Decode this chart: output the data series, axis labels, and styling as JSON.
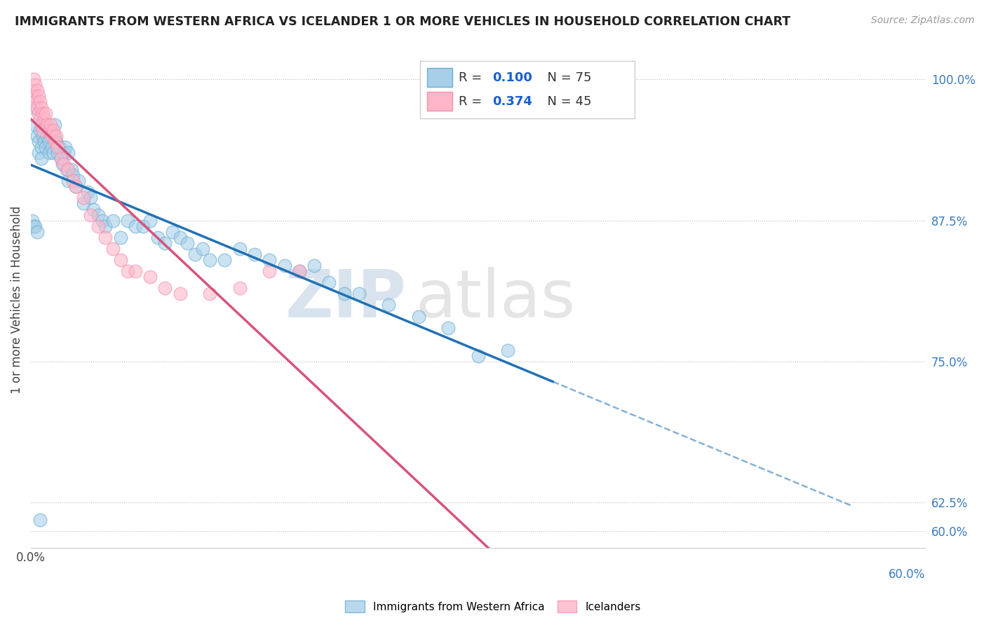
{
  "title": "IMMIGRANTS FROM WESTERN AFRICA VS ICELANDER 1 OR MORE VEHICLES IN HOUSEHOLD CORRELATION CHART",
  "source": "Source: ZipAtlas.com",
  "ylabel": "1 or more Vehicles in Household",
  "legend_label1": "Immigrants from Western Africa",
  "legend_label2": "Icelanders",
  "legend_r1_pre": "R = ",
  "legend_r1_val": "0.100",
  "legend_n1": "N = 75",
  "legend_r2_pre": "R = ",
  "legend_r2_val": "0.374",
  "legend_n2": "N = 45",
  "blue_color": "#a8cfe8",
  "blue_edge_color": "#6baed6",
  "pink_color": "#ffb6c8",
  "pink_edge_color": "#f48fb1",
  "blue_line_color": "#2171b5",
  "pink_line_color": "#d6547a",
  "rval_color": "#1a5fcc",
  "watermark_zip": "ZIP",
  "watermark_atlas": "atlas",
  "xlim": [
    0.0,
    0.6
  ],
  "ylim": [
    0.585,
    1.025
  ],
  "yticks_right": [
    1.0,
    0.875,
    0.75,
    0.625,
    0.6
  ],
  "ytick_right_labels": [
    "100.0%",
    "87.5%",
    "75.0%",
    "62.5%",
    "60.0%"
  ],
  "xtick_left_label": "0.0%",
  "xtick_right_label": "60.0%",
  "blue_scatter_x": [
    0.002,
    0.003,
    0.004,
    0.005,
    0.005,
    0.006,
    0.007,
    0.007,
    0.008,
    0.009,
    0.01,
    0.01,
    0.011,
    0.012,
    0.012,
    0.013,
    0.014,
    0.015,
    0.016,
    0.016,
    0.017,
    0.018,
    0.019,
    0.02,
    0.021,
    0.022,
    0.023,
    0.024,
    0.025,
    0.025,
    0.027,
    0.028,
    0.03,
    0.032,
    0.035,
    0.038,
    0.04,
    0.042,
    0.045,
    0.048,
    0.05,
    0.055,
    0.06,
    0.065,
    0.07,
    0.075,
    0.08,
    0.085,
    0.09,
    0.095,
    0.1,
    0.105,
    0.11,
    0.115,
    0.12,
    0.13,
    0.14,
    0.15,
    0.16,
    0.17,
    0.18,
    0.19,
    0.2,
    0.21,
    0.22,
    0.24,
    0.26,
    0.28,
    0.3,
    0.32,
    0.001,
    0.002,
    0.003,
    0.004,
    0.006
  ],
  "blue_scatter_y": [
    0.975,
    0.96,
    0.95,
    0.945,
    0.935,
    0.955,
    0.94,
    0.93,
    0.95,
    0.945,
    0.96,
    0.94,
    0.95,
    0.935,
    0.945,
    0.955,
    0.94,
    0.935,
    0.95,
    0.96,
    0.945,
    0.935,
    0.94,
    0.93,
    0.925,
    0.935,
    0.94,
    0.92,
    0.935,
    0.91,
    0.92,
    0.915,
    0.905,
    0.91,
    0.89,
    0.9,
    0.895,
    0.885,
    0.88,
    0.875,
    0.87,
    0.875,
    0.86,
    0.875,
    0.87,
    0.87,
    0.875,
    0.86,
    0.855,
    0.865,
    0.86,
    0.855,
    0.845,
    0.85,
    0.84,
    0.84,
    0.85,
    0.845,
    0.84,
    0.835,
    0.83,
    0.835,
    0.82,
    0.81,
    0.81,
    0.8,
    0.79,
    0.78,
    0.755,
    0.76,
    0.875,
    0.87,
    0.87,
    0.865,
    0.61
  ],
  "pink_scatter_x": [
    0.001,
    0.002,
    0.002,
    0.003,
    0.003,
    0.004,
    0.004,
    0.005,
    0.005,
    0.006,
    0.006,
    0.007,
    0.007,
    0.008,
    0.008,
    0.009,
    0.01,
    0.011,
    0.012,
    0.013,
    0.014,
    0.015,
    0.016,
    0.017,
    0.018,
    0.02,
    0.022,
    0.025,
    0.028,
    0.03,
    0.035,
    0.04,
    0.045,
    0.05,
    0.055,
    0.06,
    0.065,
    0.07,
    0.08,
    0.09,
    0.1,
    0.12,
    0.14,
    0.16,
    0.18
  ],
  "pink_scatter_y": [
    0.99,
    1.0,
    0.985,
    0.995,
    0.98,
    0.99,
    0.975,
    0.985,
    0.97,
    0.98,
    0.965,
    0.975,
    0.96,
    0.97,
    0.955,
    0.965,
    0.97,
    0.96,
    0.955,
    0.96,
    0.95,
    0.955,
    0.945,
    0.95,
    0.94,
    0.93,
    0.925,
    0.92,
    0.91,
    0.905,
    0.895,
    0.88,
    0.87,
    0.86,
    0.85,
    0.84,
    0.83,
    0.83,
    0.825,
    0.815,
    0.81,
    0.81,
    0.815,
    0.83,
    0.83
  ],
  "blue_line_x_solid_start": 0.0,
  "blue_line_x_solid_end": 0.35,
  "blue_line_x_dash_end": 0.55,
  "pink_line_x_start": 0.0,
  "pink_line_x_end": 0.5
}
